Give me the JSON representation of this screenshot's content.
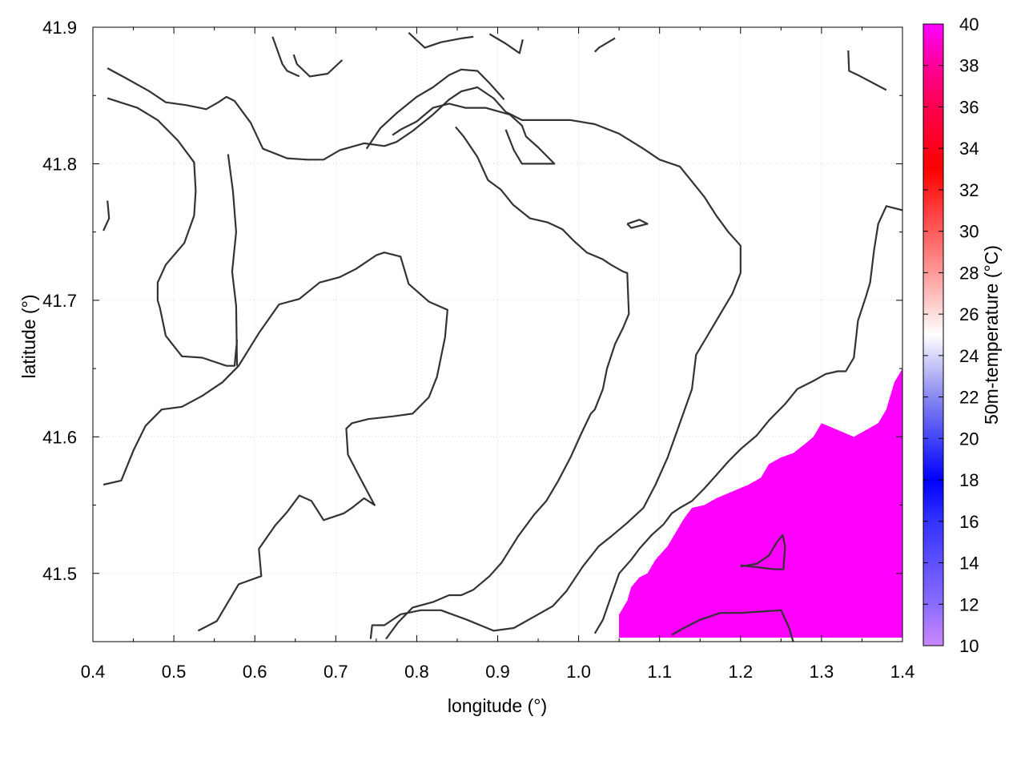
{
  "chart_data": {
    "type": "heatmap",
    "title": "",
    "xlabel": "longitude (°)",
    "ylabel": "latitude (°)",
    "colorbar_label": "50m-temperature (°C)",
    "xlim": [
      0.4,
      1.4
    ],
    "ylim": [
      41.45,
      41.9
    ],
    "x_ticks": [
      "0.4",
      "0.5",
      "0.6",
      "0.7",
      "0.8",
      "0.9",
      "1.0",
      "1.1",
      "1.2",
      "1.3",
      "1.4"
    ],
    "x_tick_values": [
      0.4,
      0.5,
      0.6,
      0.7,
      0.8,
      0.9,
      1.0,
      1.1,
      1.2,
      1.3,
      1.4
    ],
    "y_ticks": [
      "41.5",
      "41.6",
      "41.7",
      "41.8",
      "41.9"
    ],
    "y_tick_values": [
      41.5,
      41.6,
      41.7,
      41.8,
      41.9
    ],
    "colorbar_range": [
      10,
      40
    ],
    "colorbar_ticks": [
      "10",
      "12",
      "14",
      "16",
      "18",
      "20",
      "22",
      "24",
      "26",
      "28",
      "30",
      "32",
      "34",
      "36",
      "38",
      "40"
    ],
    "colorbar_tick_values": [
      10,
      12,
      14,
      16,
      18,
      20,
      22,
      24,
      26,
      28,
      30,
      32,
      34,
      36,
      38,
      40
    ],
    "colormap": [
      {
        "value": 10,
        "color": "#cc88ff"
      },
      {
        "value": 12,
        "color": "#8a6cff"
      },
      {
        "value": 16,
        "color": "#3333ff"
      },
      {
        "value": 18,
        "color": "#0000ff"
      },
      {
        "value": 22,
        "color": "#8888f0"
      },
      {
        "value": 25,
        "color": "#ffffff"
      },
      {
        "value": 28,
        "color": "#ff9999"
      },
      {
        "value": 33,
        "color": "#ff0000"
      },
      {
        "value": 36,
        "color": "#ff0050"
      },
      {
        "value": 38,
        "color": "#ff0099"
      },
      {
        "value": 40,
        "color": "#ff00ff"
      }
    ],
    "grid": true,
    "heatmap_region": {
      "value": 40,
      "color": "#ff00ff",
      "boundary": [
        [
          1.05,
          41.453
        ],
        [
          1.05,
          41.47
        ],
        [
          1.06,
          41.48
        ],
        [
          1.065,
          41.49
        ],
        [
          1.075,
          41.497
        ],
        [
          1.085,
          41.5
        ],
        [
          1.095,
          41.51
        ],
        [
          1.11,
          41.52
        ],
        [
          1.12,
          41.53
        ],
        [
          1.13,
          41.54
        ],
        [
          1.14,
          41.548
        ],
        [
          1.155,
          41.55
        ],
        [
          1.17,
          41.555
        ],
        [
          1.19,
          41.56
        ],
        [
          1.21,
          41.565
        ],
        [
          1.225,
          41.57
        ],
        [
          1.235,
          41.58
        ],
        [
          1.25,
          41.585
        ],
        [
          1.265,
          41.588
        ],
        [
          1.28,
          41.595
        ],
        [
          1.29,
          41.6
        ],
        [
          1.3,
          41.61
        ],
        [
          1.32,
          41.605
        ],
        [
          1.34,
          41.6
        ],
        [
          1.355,
          41.605
        ],
        [
          1.37,
          41.61
        ],
        [
          1.38,
          41.62
        ],
        [
          1.39,
          41.64
        ],
        [
          1.4,
          41.65
        ],
        [
          1.4,
          41.453
        ]
      ]
    },
    "contours": [
      [
        [
          0.413,
          41.565
        ],
        [
          0.435,
          41.568
        ],
        [
          0.45,
          41.59
        ],
        [
          0.465,
          41.608
        ],
        [
          0.485,
          41.62
        ],
        [
          0.51,
          41.622
        ],
        [
          0.535,
          41.63
        ],
        [
          0.56,
          41.64
        ],
        [
          0.58,
          41.652
        ],
        [
          0.605,
          41.676
        ],
        [
          0.63,
          41.697
        ],
        [
          0.655,
          41.701
        ],
        [
          0.68,
          41.713
        ],
        [
          0.705,
          41.717
        ],
        [
          0.725,
          41.723
        ],
        [
          0.75,
          41.733
        ],
        [
          0.76,
          41.735
        ],
        [
          0.78,
          41.732
        ],
        [
          0.79,
          41.712
        ],
        [
          0.815,
          41.699
        ],
        [
          0.838,
          41.693
        ],
        [
          0.835,
          41.673
        ],
        [
          0.825,
          41.644
        ],
        [
          0.815,
          41.629
        ],
        [
          0.795,
          41.617
        ],
        [
          0.77,
          41.615
        ],
        [
          0.74,
          41.613
        ],
        [
          0.72,
          41.61
        ],
        [
          0.713,
          41.606
        ],
        [
          0.715,
          41.587
        ],
        [
          0.73,
          41.57
        ],
        [
          0.748,
          41.55
        ],
        [
          0.735,
          41.555
        ],
        [
          0.72,
          41.548
        ],
        [
          0.71,
          41.544
        ],
        [
          0.685,
          41.539
        ],
        [
          0.67,
          41.553
        ],
        [
          0.655,
          41.557
        ],
        [
          0.64,
          41.545
        ],
        [
          0.625,
          41.535
        ],
        [
          0.605,
          41.518
        ],
        [
          0.608,
          41.498
        ],
        [
          0.58,
          41.492
        ],
        [
          0.566,
          41.478
        ],
        [
          0.553,
          41.465
        ],
        [
          0.53,
          41.458
        ]
      ],
      [
        [
          0.418,
          41.87
        ],
        [
          0.44,
          41.863
        ],
        [
          0.47,
          41.853
        ],
        [
          0.49,
          41.845
        ],
        [
          0.515,
          41.843
        ],
        [
          0.54,
          41.84
        ],
        [
          0.555,
          41.845
        ],
        [
          0.565,
          41.849
        ],
        [
          0.575,
          41.846
        ],
        [
          0.595,
          41.83
        ],
        [
          0.61,
          41.811
        ],
        [
          0.64,
          41.804
        ],
        [
          0.665,
          41.803
        ],
        [
          0.685,
          41.803
        ],
        [
          0.705,
          41.81
        ],
        [
          0.735,
          41.815
        ],
        [
          0.76,
          41.813
        ],
        [
          0.775,
          41.816
        ],
        [
          0.795,
          41.824
        ],
        [
          0.82,
          41.836
        ],
        [
          0.84,
          41.847
        ],
        [
          0.855,
          41.853
        ],
        [
          0.875,
          41.856
        ],
        [
          0.895,
          41.848
        ],
        [
          0.91,
          41.838
        ],
        [
          0.93,
          41.832
        ],
        [
          0.96,
          41.832
        ],
        [
          0.99,
          41.832
        ],
        [
          1.02,
          41.829
        ],
        [
          1.05,
          41.822
        ],
        [
          1.08,
          41.811
        ],
        [
          1.1,
          41.803
        ],
        [
          1.125,
          41.798
        ],
        [
          1.14,
          41.787
        ],
        [
          1.155,
          41.776
        ],
        [
          1.17,
          41.762
        ],
        [
          1.185,
          41.75
        ],
        [
          1.2,
          41.74
        ],
        [
          1.2,
          41.72
        ],
        [
          1.19,
          41.705
        ],
        [
          1.175,
          41.69
        ],
        [
          1.16,
          41.675
        ],
        [
          1.145,
          41.66
        ],
        [
          1.14,
          41.635
        ],
        [
          1.125,
          41.61
        ],
        [
          1.11,
          41.585
        ],
        [
          1.095,
          41.565
        ],
        [
          1.08,
          41.548
        ],
        [
          1.06,
          41.537
        ],
        [
          1.04,
          41.527
        ],
        [
          1.025,
          41.52
        ],
        [
          1.005,
          41.505
        ],
        [
          0.985,
          41.487
        ],
        [
          0.968,
          41.476
        ],
        [
          0.95,
          41.47
        ],
        [
          0.92,
          41.46
        ],
        [
          0.895,
          41.458
        ],
        [
          0.862,
          41.466
        ],
        [
          0.83,
          41.473
        ],
        [
          0.805,
          41.473
        ],
        [
          0.78,
          41.47
        ],
        [
          0.76,
          41.462
        ],
        [
          0.745,
          41.462
        ],
        [
          0.743,
          41.452
        ]
      ],
      [
        [
          0.418,
          41.848
        ],
        [
          0.455,
          41.841
        ],
        [
          0.48,
          41.832
        ],
        [
          0.505,
          41.817
        ],
        [
          0.525,
          41.801
        ],
        [
          0.527,
          41.78
        ],
        [
          0.525,
          41.762
        ],
        [
          0.513,
          41.742
        ],
        [
          0.49,
          41.726
        ],
        [
          0.48,
          41.713
        ],
        [
          0.48,
          41.7
        ],
        [
          0.483,
          41.694
        ],
        [
          0.49,
          41.674
        ],
        [
          0.51,
          41.659
        ],
        [
          0.535,
          41.658
        ],
        [
          0.565,
          41.652
        ],
        [
          0.575,
          41.652
        ],
        [
          0.578,
          41.671
        ]
      ],
      [
        [
          0.418,
          41.773
        ],
        [
          0.42,
          41.76
        ],
        [
          0.413,
          41.751
        ]
      ],
      [
        [
          0.567,
          41.807
        ],
        [
          0.573,
          41.78
        ],
        [
          0.577,
          41.75
        ],
        [
          0.572,
          41.721
        ],
        [
          0.577,
          41.696
        ],
        [
          0.578,
          41.652
        ]
      ],
      [
        [
          0.648,
          41.88
        ],
        [
          0.652,
          41.873
        ],
        [
          0.668,
          41.864
        ],
        [
          0.69,
          41.866
        ],
        [
          0.708,
          41.876
        ]
      ],
      [
        [
          0.622,
          41.893
        ],
        [
          0.634,
          41.873
        ],
        [
          0.64,
          41.868
        ],
        [
          0.655,
          41.864
        ]
      ],
      [
        [
          0.79,
          41.896
        ],
        [
          0.81,
          41.885
        ],
        [
          0.83,
          41.889
        ],
        [
          0.857,
          41.892
        ],
        [
          0.87,
          41.893
        ]
      ],
      [
        [
          0.89,
          41.895
        ],
        [
          0.91,
          41.888
        ],
        [
          0.927,
          41.881
        ],
        [
          0.931,
          41.891
        ]
      ],
      [
        [
          1.02,
          41.882
        ],
        [
          1.025,
          41.885
        ],
        [
          1.045,
          41.892
        ]
      ],
      [
        [
          1.333,
          41.883
        ],
        [
          1.334,
          41.868
        ],
        [
          1.345,
          41.865
        ],
        [
          1.38,
          41.854
        ]
      ],
      [
        [
          0.738,
          41.811
        ],
        [
          0.755,
          41.826
        ],
        [
          0.775,
          41.837
        ],
        [
          0.8,
          41.849
        ],
        [
          0.82,
          41.856
        ],
        [
          0.84,
          41.865
        ],
        [
          0.855,
          41.869
        ],
        [
          0.875,
          41.868
        ],
        [
          0.89,
          41.859
        ],
        [
          0.908,
          41.847
        ]
      ],
      [
        [
          0.91,
          41.825
        ],
        [
          0.92,
          41.81
        ],
        [
          0.93,
          41.8
        ],
        [
          0.95,
          41.8
        ],
        [
          0.965,
          41.8
        ],
        [
          0.97,
          41.8
        ],
        [
          0.95,
          41.812
        ],
        [
          0.935,
          41.82
        ],
        [
          0.93,
          41.828
        ],
        [
          0.915,
          41.836
        ],
        [
          0.885,
          41.841
        ],
        [
          0.86,
          41.841
        ],
        [
          0.84,
          41.844
        ],
        [
          0.82,
          41.841
        ],
        [
          0.8,
          41.831
        ],
        [
          0.78,
          41.825
        ],
        [
          0.77,
          41.821
        ]
      ],
      [
        [
          1.06,
          41.756
        ],
        [
          1.075,
          41.759
        ],
        [
          1.085,
          41.756
        ],
        [
          1.065,
          41.753
        ],
        [
          1.06,
          41.756
        ]
      ],
      [
        [
          0.848,
          41.827
        ],
        [
          0.858,
          41.82
        ],
        [
          0.875,
          41.805
        ],
        [
          0.888,
          41.788
        ],
        [
          0.904,
          41.781
        ],
        [
          0.919,
          41.77
        ],
        [
          0.94,
          41.76
        ],
        [
          0.962,
          41.757
        ],
        [
          0.98,
          41.752
        ],
        [
          0.995,
          41.743
        ],
        [
          1.01,
          41.735
        ],
        [
          1.03,
          41.73
        ],
        [
          1.04,
          41.726
        ],
        [
          1.055,
          41.721
        ],
        [
          1.06,
          41.72
        ],
        [
          1.062,
          41.69
        ],
        [
          1.055,
          41.68
        ],
        [
          1.045,
          41.668
        ],
        [
          1.035,
          41.65
        ],
        [
          1.03,
          41.635
        ],
        [
          1.02,
          41.62
        ],
        [
          1.015,
          41.617
        ],
        [
          1.003,
          41.602
        ],
        [
          0.99,
          41.585
        ],
        [
          0.975,
          41.568
        ],
        [
          0.96,
          41.553
        ],
        [
          0.945,
          41.543
        ],
        [
          0.925,
          41.527
        ],
        [
          0.905,
          41.508
        ],
        [
          0.89,
          41.498
        ],
        [
          0.87,
          41.488
        ],
        [
          0.855,
          41.484
        ],
        [
          0.84,
          41.484
        ],
        [
          0.82,
          41.479
        ],
        [
          0.795,
          41.475
        ],
        [
          0.777,
          41.464
        ],
        [
          0.762,
          41.452
        ]
      ],
      [
        [
          1.02,
          41.456
        ],
        [
          1.03,
          41.466
        ],
        [
          1.04,
          41.483
        ],
        [
          1.05,
          41.5
        ],
        [
          1.065,
          41.51
        ],
        [
          1.075,
          41.518
        ],
        [
          1.09,
          41.528
        ],
        [
          1.105,
          41.536
        ],
        [
          1.115,
          41.544
        ],
        [
          1.125,
          41.548
        ],
        [
          1.14,
          41.553
        ],
        [
          1.155,
          41.562
        ],
        [
          1.17,
          41.572
        ],
        [
          1.185,
          41.582
        ],
        [
          1.2,
          41.591
        ],
        [
          1.22,
          41.601
        ],
        [
          1.235,
          41.612
        ],
        [
          1.255,
          41.624
        ],
        [
          1.27,
          41.635
        ],
        [
          1.29,
          41.641
        ],
        [
          1.305,
          41.646
        ],
        [
          1.32,
          41.648
        ],
        [
          1.33,
          41.648
        ],
        [
          1.34,
          41.658
        ],
        [
          1.345,
          41.685
        ],
        [
          1.355,
          41.703
        ],
        [
          1.36,
          41.713
        ],
        [
          1.365,
          41.737
        ],
        [
          1.37,
          41.756
        ],
        [
          1.38,
          41.769
        ],
        [
          1.4,
          41.766
        ]
      ],
      [
        [
          1.2,
          41.505
        ],
        [
          1.22,
          41.507
        ],
        [
          1.235,
          41.513
        ],
        [
          1.245,
          41.523
        ],
        [
          1.252,
          41.528
        ],
        [
          1.255,
          41.52
        ],
        [
          1.253,
          41.503
        ],
        [
          1.242,
          41.503
        ],
        [
          1.2,
          41.506
        ]
      ],
      [
        [
          1.115,
          41.455
        ],
        [
          1.13,
          41.46
        ],
        [
          1.15,
          41.466
        ],
        [
          1.175,
          41.471
        ],
        [
          1.2,
          41.471
        ],
        [
          1.225,
          41.472
        ],
        [
          1.25,
          41.473
        ],
        [
          1.26,
          41.46
        ],
        [
          1.265,
          41.45
        ]
      ]
    ]
  }
}
